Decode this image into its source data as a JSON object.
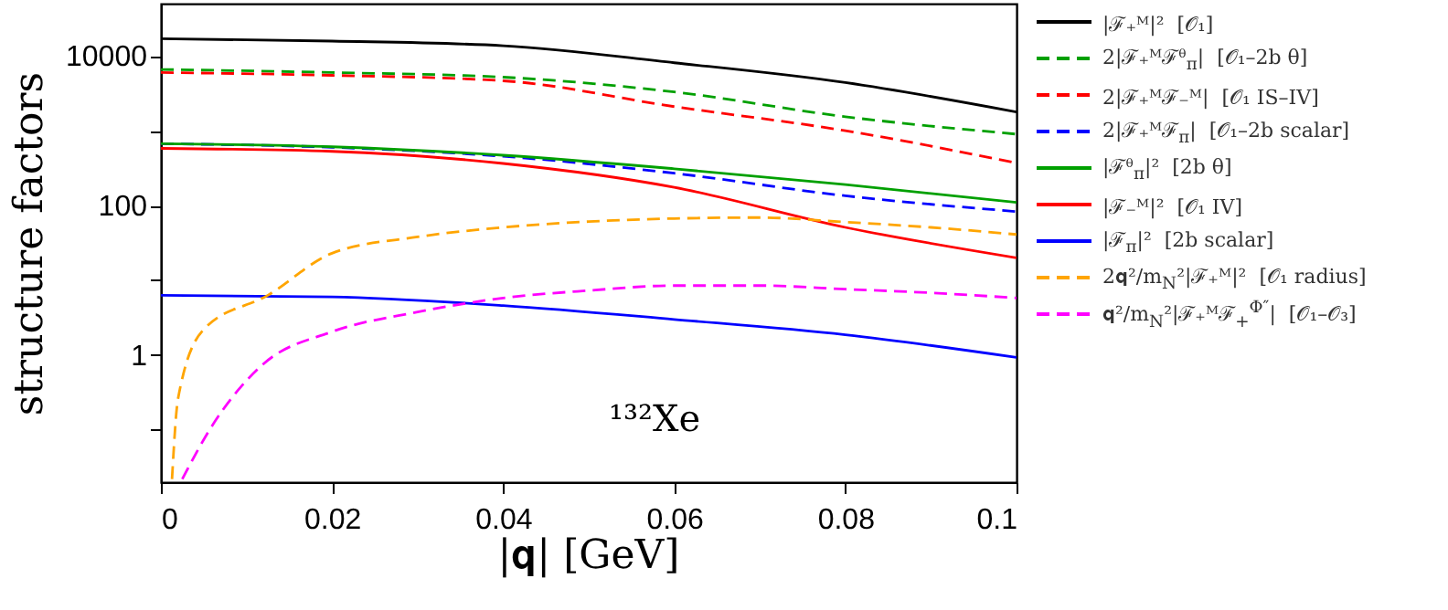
{
  "chart_data": {
    "type": "line",
    "xlabel": "|𝐪| [GeV]",
    "ylabel": "structure factors",
    "annotations": [
      "¹³²Xe"
    ],
    "xlim": [
      0,
      0.1
    ],
    "xticks": [
      0,
      0.02,
      0.04,
      0.06,
      0.08,
      0.1
    ],
    "ylim": [
      0.02,
      50000
    ],
    "yticks": [
      {
        "value": 0.1,
        "label": null
      },
      1,
      {
        "value": 10,
        "label": null
      },
      100,
      {
        "value": 1000,
        "label": null
      },
      10000
    ],
    "log": "y",
    "grid": false,
    "legend": "right",
    "series": [
      {
        "name": "|ℱ₊ᴹ|²  [𝒪₁]",
        "color": "#000000",
        "line_style": "solid",
        "x": [
          0,
          0.02,
          0.04,
          0.06,
          0.08,
          0.1
        ],
        "values": [
          17000,
          15800,
          13700,
          8100,
          4400,
          1780
        ]
      },
      {
        "name": "2|ℱ₊ᴹℱᶿ$_{π}$|  [𝒪₁–2b θ]",
        "color": "#00a000",
        "line_style": "dashed",
        "x": [
          0,
          0.02,
          0.04,
          0.06,
          0.08,
          0.1
        ],
        "values": [
          6600,
          6000,
          5200,
          3300,
          1540,
          900
        ]
      },
      {
        "name": "2|ℱ₊ᴹℱ₋ᴹ|  [𝒪₁ IS–IV]",
        "color": "#ff0000",
        "line_style": "dashed",
        "x": [
          0,
          0.02,
          0.04,
          0.06,
          0.08,
          0.1
        ],
        "values": [
          6000,
          5500,
          4650,
          2100,
          1000,
          370
        ]
      },
      {
        "name": "2|ℱ₊ᴹℱ$_{π}$|  [𝒪₁–2b scalar]",
        "color": "#0000ff",
        "line_style": "dashed",
        "x": [
          0,
          0.02,
          0.04,
          0.06,
          0.08,
          0.1
        ],
        "values": [
          670,
          600,
          455,
          270,
          135,
          83
        ]
      },
      {
        "name": "|ℱᶿ$_{π}$|²  [2b θ]",
        "color": "#00a000",
        "line_style": "solid",
        "x": [
          0,
          0.02,
          0.04,
          0.06,
          0.08,
          0.1
        ],
        "values": [
          670,
          610,
          470,
          310,
          190,
          110
        ]
      },
      {
        "name": "|ℱ₋ᴹ|²  [𝒪₁ IV]",
        "color": "#ff0000",
        "line_style": "solid",
        "x": [
          0,
          0.02,
          0.04,
          0.06,
          0.08,
          0.1
        ],
        "values": [
          580,
          530,
          365,
          175,
          51,
          20
        ]
      },
      {
        "name": "|ℱ$_{π}$|²  [2b scalar]",
        "color": "#0000ff",
        "line_style": "solid",
        "x": [
          0,
          0.02,
          0.04,
          0.06,
          0.08,
          0.1
        ],
        "values": [
          6.3,
          6.0,
          4.6,
          3.0,
          1.87,
          0.93
        ]
      },
      {
        "name": "2𝐪²/m$_{N}$²|ℱ₊ᴹ|²  [𝒪₁ radius]",
        "color": "#ffa500",
        "line_style": "dashed",
        "x": [
          0.0013,
          0.002,
          0.005,
          0.0125,
          0.02,
          0.03,
          0.04,
          0.05,
          0.06,
          0.07,
          0.08,
          0.09,
          0.1
        ],
        "values": [
          0.022,
          0.26,
          2.2,
          6.3,
          23,
          38,
          51,
          61,
          67,
          69,
          60,
          51,
          41
        ]
      },
      {
        "name": "𝐪²/m$_{N}$²|ℱ₊ᴹℱ$_{+}$$^{Φ″}$|  [𝒪₁–𝒪₃]",
        "color": "#ff00ff",
        "line_style": "dashed",
        "x": [
          0.0025,
          0.0058,
          0.0118,
          0.02,
          0.03,
          0.04,
          0.05,
          0.06,
          0.07,
          0.08,
          0.09,
          0.1
        ],
        "values": [
          0.022,
          0.105,
          0.73,
          2.05,
          3.76,
          5.8,
          7.3,
          8.5,
          8.5,
          7.6,
          6.8,
          5.8
        ]
      }
    ]
  }
}
